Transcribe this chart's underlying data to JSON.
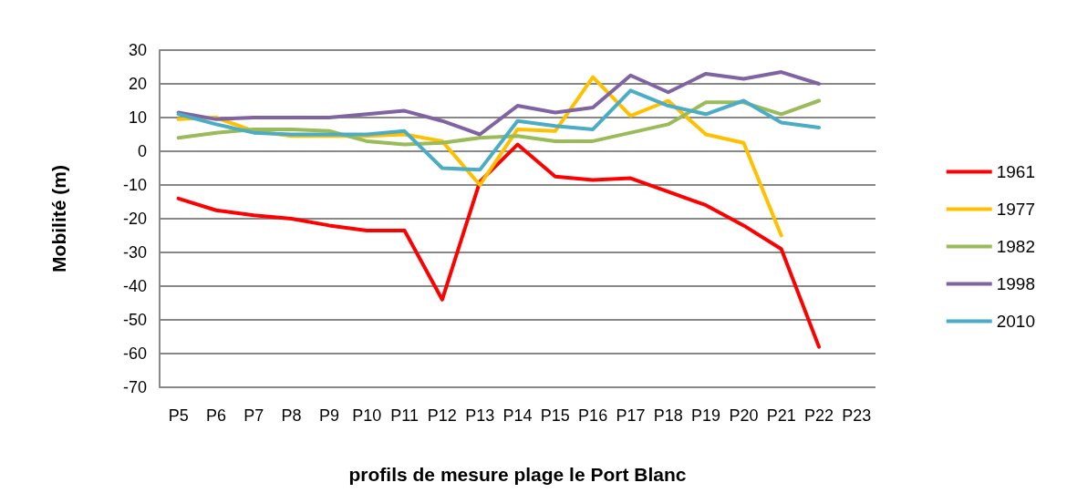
{
  "chart_data": {
    "type": "line",
    "xlabel": "profils de mesure plage le Port Blanc",
    "ylabel": "Mobilité (m)",
    "categories": [
      "P5",
      "P6",
      "P7",
      "P8",
      "P9",
      "P10",
      "P11",
      "P12",
      "P13",
      "P14",
      "P15",
      "P16",
      "P17",
      "P18",
      "P19",
      "P20",
      "P21",
      "P22",
      "P23"
    ],
    "series": [
      {
        "name": "1961",
        "color": "#ff0000",
        "values": [
          -14,
          -17.5,
          -19,
          -20,
          -22,
          -23.5,
          -23.5,
          -44,
          -9,
          2,
          -7.5,
          -8.5,
          -8,
          -12,
          -16,
          -22,
          -29,
          -58,
          null
        ]
      },
      {
        "name": "1977",
        "color": "#ffc000",
        "values": [
          9.5,
          10,
          6,
          4.5,
          4.5,
          4.5,
          5,
          3,
          -10,
          6.5,
          6,
          22,
          10.5,
          15,
          5,
          2.5,
          -25,
          null,
          null
        ]
      },
      {
        "name": "1982",
        "color": "#9bbb59",
        "values": [
          4,
          5.5,
          6.5,
          6.5,
          6,
          3,
          2,
          2.5,
          4,
          4.5,
          3,
          3,
          5.5,
          8,
          14.5,
          14.5,
          11,
          15,
          null
        ]
      },
      {
        "name": "1998",
        "color": "#8064a2",
        "values": [
          11.5,
          9.5,
          10,
          10,
          10,
          11,
          12,
          9,
          5,
          13.5,
          11.5,
          13,
          22.5,
          17.5,
          23,
          21.5,
          23.5,
          20,
          null
        ]
      },
      {
        "name": "2010",
        "color": "#4bacc6",
        "values": [
          11,
          8,
          5.5,
          5,
          5,
          5,
          6,
          -5,
          -5.5,
          9,
          7.5,
          6.5,
          18,
          13.5,
          11,
          15,
          8.5,
          7,
          null
        ]
      }
    ],
    "ylim": [
      -70,
      30
    ],
    "yticks": [
      -70,
      -60,
      -50,
      -40,
      -30,
      -20,
      -10,
      0,
      10,
      20,
      30
    ],
    "grid": "y",
    "legend": "right",
    "marker": "none",
    "line_style": "solid"
  }
}
